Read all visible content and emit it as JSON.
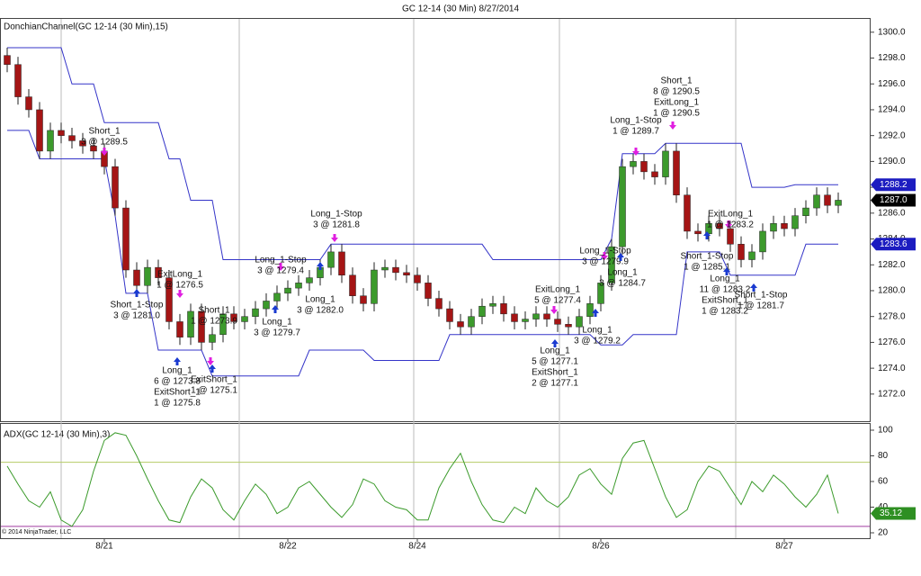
{
  "chart_data": [
    {
      "type": "candlestick",
      "title": "GC 12-14 (30 Min)  8/27/2014",
      "label": "DonchianChannel(GC 12-14 (30 Min),15)",
      "copyright": "© 2014 NinjaTrader, LLC",
      "ylim": [
        1269.9,
        1301.1
      ],
      "yticks": [
        {
          "value": 1272,
          "label": "1272.0"
        },
        {
          "value": 1274,
          "label": "1274.0"
        },
        {
          "value": 1276,
          "label": "1276.0"
        },
        {
          "value": 1278,
          "label": "1278.0"
        },
        {
          "value": 1280,
          "label": "1280.0"
        },
        {
          "value": 1282,
          "label": "1282.0"
        },
        {
          "value": 1284,
          "label": "1284.0"
        },
        {
          "value": 1286,
          "label": "1286.0"
        },
        {
          "value": 1288,
          "label": "1288.0"
        },
        {
          "value": 1290,
          "label": "1290.0"
        },
        {
          "value": 1292,
          "label": "1292.0"
        },
        {
          "value": 1294,
          "label": "1294.0"
        },
        {
          "value": 1296,
          "label": "1296.0"
        },
        {
          "value": 1298,
          "label": "1298.0"
        },
        {
          "value": 1300,
          "label": "1300.0"
        }
      ],
      "xticks": [
        {
          "value": 9,
          "label": "8/21"
        },
        {
          "value": 26,
          "label": "8/22"
        },
        {
          "value": 38,
          "label": "8/24"
        },
        {
          "value": 55,
          "label": "8/26"
        },
        {
          "value": 72,
          "label": "8/27"
        }
      ],
      "up_color": "#3c9a2c",
      "down_color": "#a51515",
      "open": [
        1298.2,
        1297.5,
        1295.0,
        1294.0,
        1290.8,
        1292.4,
        1292.0,
        1291.6,
        1291.2,
        1290.8,
        1289.6,
        1286.4,
        1281.6,
        1280.4,
        1281.8,
        1281.0,
        1277.6,
        1276.4,
        1278.4,
        1276.0,
        1276.6,
        1278.2,
        1277.6,
        1278.0,
        1278.6,
        1279.2,
        1279.8,
        1280.2,
        1280.6,
        1281.0,
        1281.8,
        1283.0,
        1281.2,
        1279.6,
        1279.0,
        1281.6,
        1281.8,
        1281.4,
        1281.2,
        1280.6,
        1279.4,
        1278.6,
        1277.6,
        1277.2,
        1278.0,
        1278.8,
        1279.0,
        1278.2,
        1277.6,
        1277.8,
        1278.2,
        1277.8,
        1277.4,
        1277.2,
        1278.0,
        1279.0,
        1280.6,
        1283.4,
        1289.6,
        1290.0,
        1289.2,
        1288.8,
        1290.8,
        1287.4,
        1284.6,
        1284.4,
        1285.2,
        1284.8,
        1283.6,
        1282.4,
        1283.0,
        1284.6,
        1285.2,
        1284.8,
        1285.8,
        1286.4,
        1287.4,
        1286.6
      ],
      "high": [
        1298.8,
        1298.1,
        1295.6,
        1294.6,
        1293.0,
        1293.0,
        1292.6,
        1292.2,
        1291.8,
        1291.4,
        1290.2,
        1287.0,
        1282.2,
        1282.4,
        1282.4,
        1281.6,
        1278.2,
        1279.0,
        1279.0,
        1277.2,
        1278.8,
        1278.8,
        1278.6,
        1279.2,
        1279.8,
        1280.4,
        1280.8,
        1281.2,
        1281.6,
        1282.4,
        1283.6,
        1283.6,
        1281.8,
        1280.2,
        1282.2,
        1282.4,
        1282.4,
        1282.0,
        1281.8,
        1281.2,
        1280.0,
        1279.2,
        1278.2,
        1278.6,
        1279.4,
        1279.6,
        1279.6,
        1278.8,
        1278.4,
        1278.8,
        1278.8,
        1278.4,
        1278.0,
        1278.6,
        1279.6,
        1281.2,
        1284.0,
        1290.2,
        1290.6,
        1290.6,
        1289.8,
        1291.4,
        1291.4,
        1288.0,
        1285.2,
        1285.8,
        1285.8,
        1285.4,
        1284.2,
        1283.6,
        1285.2,
        1285.8,
        1285.8,
        1286.4,
        1287.0,
        1288.0,
        1288.0,
        1287.6
      ],
      "low": [
        1296.9,
        1294.4,
        1293.4,
        1290.2,
        1290.2,
        1291.4,
        1291.0,
        1290.6,
        1290.2,
        1289.0,
        1285.8,
        1281.0,
        1279.8,
        1279.8,
        1280.4,
        1277.0,
        1275.8,
        1275.8,
        1275.4,
        1275.4,
        1276.0,
        1277.0,
        1277.0,
        1277.4,
        1278.0,
        1278.6,
        1279.2,
        1279.6,
        1280.0,
        1280.4,
        1281.2,
        1280.6,
        1279.0,
        1278.4,
        1278.4,
        1281.0,
        1280.8,
        1280.6,
        1280.0,
        1278.8,
        1278.0,
        1277.0,
        1276.6,
        1276.6,
        1277.4,
        1278.2,
        1277.6,
        1277.0,
        1277.0,
        1277.2,
        1277.2,
        1276.8,
        1276.6,
        1276.6,
        1277.4,
        1278.4,
        1280.0,
        1282.8,
        1289.0,
        1288.6,
        1288.2,
        1288.2,
        1286.8,
        1284.0,
        1283.8,
        1283.8,
        1284.2,
        1283.0,
        1281.8,
        1281.8,
        1282.4,
        1284.0,
        1284.2,
        1284.2,
        1285.2,
        1285.8,
        1286.0,
        1286.0
      ],
      "close": [
        1297.5,
        1295.0,
        1294.0,
        1290.8,
        1292.4,
        1292.0,
        1291.6,
        1291.2,
        1290.8,
        1289.6,
        1286.4,
        1281.6,
        1280.4,
        1281.8,
        1281.0,
        1277.6,
        1276.4,
        1278.4,
        1276.0,
        1276.6,
        1278.2,
        1277.6,
        1278.0,
        1278.6,
        1279.2,
        1279.8,
        1280.2,
        1280.6,
        1281.0,
        1281.8,
        1283.0,
        1281.2,
        1279.6,
        1279.0,
        1281.6,
        1281.8,
        1281.4,
        1281.2,
        1280.6,
        1279.4,
        1278.6,
        1277.6,
        1277.2,
        1278.0,
        1278.8,
        1279.0,
        1278.2,
        1277.6,
        1277.8,
        1278.2,
        1277.8,
        1277.4,
        1277.2,
        1278.0,
        1279.0,
        1280.6,
        1283.4,
        1289.6,
        1290.0,
        1289.2,
        1288.8,
        1290.8,
        1287.4,
        1284.6,
        1284.4,
        1285.2,
        1284.8,
        1283.6,
        1282.4,
        1283.0,
        1284.6,
        1285.2,
        1284.8,
        1285.8,
        1286.4,
        1287.4,
        1286.6,
        1287.0
      ],
      "channel": {
        "color": "#3434c8",
        "upper": [
          1298.8,
          1298.8,
          1298.8,
          1298.8,
          1298.8,
          1298.8,
          1296.0,
          1296.0,
          1296.0,
          1293.0,
          1293.0,
          1293.0,
          1293.0,
          1293.0,
          1293.0,
          1290.2,
          1290.2,
          1287.0,
          1287.0,
          1287.0,
          1282.4,
          1282.4,
          1282.4,
          1282.4,
          1282.4,
          1282.4,
          1282.4,
          1282.4,
          1282.4,
          1282.4,
          1283.6,
          1283.6,
          1283.6,
          1283.6,
          1283.6,
          1283.6,
          1283.6,
          1283.6,
          1283.6,
          1283.6,
          1283.6,
          1283.6,
          1283.6,
          1283.6,
          1283.6,
          1282.4,
          1282.4,
          1282.4,
          1282.4,
          1282.4,
          1282.4,
          1282.4,
          1282.4,
          1282.4,
          1282.4,
          1282.4,
          1284.0,
          1290.6,
          1290.6,
          1290.6,
          1290.6,
          1291.4,
          1291.4,
          1291.4,
          1291.4,
          1291.4,
          1291.4,
          1291.4,
          1291.4,
          1288.0,
          1288.0,
          1288.0,
          1288.0,
          1288.2,
          1288.2,
          1288.2,
          1288.2,
          1288.2
        ],
        "lower": [
          1292.4,
          1292.4,
          1292.4,
          1290.2,
          1290.2,
          1290.2,
          1290.2,
          1290.2,
          1290.2,
          1290.2,
          1285.8,
          1279.8,
          1279.8,
          1279.8,
          1275.4,
          1275.4,
          1275.4,
          1275.4,
          1275.4,
          1273.4,
          1273.4,
          1273.4,
          1273.4,
          1273.4,
          1273.4,
          1273.4,
          1273.4,
          1273.4,
          1275.4,
          1275.4,
          1275.4,
          1275.4,
          1275.4,
          1275.4,
          1274.6,
          1274.6,
          1274.6,
          1274.6,
          1274.6,
          1274.6,
          1274.6,
          1276.6,
          1276.6,
          1276.6,
          1276.6,
          1276.6,
          1276.6,
          1276.6,
          1276.6,
          1276.6,
          1276.6,
          1276.6,
          1276.6,
          1276.6,
          1276.6,
          1275.8,
          1275.8,
          1275.8,
          1276.6,
          1276.6,
          1276.6,
          1276.6,
          1276.6,
          1283.0,
          1283.0,
          1283.0,
          1283.0,
          1281.2,
          1281.2,
          1281.2,
          1281.2,
          1281.2,
          1281.2,
          1281.2,
          1283.6,
          1283.6,
          1283.6,
          1283.6
        ]
      },
      "price_markers": [
        {
          "value": 1288.2,
          "label": "1288.2",
          "color": "#1c1cc0"
        },
        {
          "value": 1287.0,
          "label": "1287.0",
          "color": "#000000"
        },
        {
          "value": 1283.6,
          "label": "1283.6",
          "color": "#1c1cc0"
        }
      ],
      "arrow_colors": {
        "down": "#e01ee0",
        "up": "#1a3ad0"
      },
      "annotations": [
        {
          "arrow": "down",
          "lines": [
            "Short_1",
            "3 @ 1289.5"
          ]
        },
        {
          "arrow": "up",
          "lines": [
            "Short_1-Stop",
            "3 @ 1281.0"
          ]
        },
        {
          "arrow": "down",
          "lines": [
            "ExitLong_1",
            "1 @ 1276.5"
          ]
        },
        {
          "arrow": "up",
          "lines": [
            "Long_1",
            "6 @ 1273.8",
            "ExitShort_1",
            "1 @ 1275.8"
          ]
        },
        {
          "arrow": "up",
          "lines": [
            "ExitShort_1",
            "1 @ 1275.1"
          ]
        },
        {
          "arrow": "down",
          "lines": [
            "Short_1",
            "1 @ 1273.9"
          ]
        },
        {
          "arrow": "down",
          "lines": [
            "Long_1-Stop",
            "3 @ 1279.4"
          ]
        },
        {
          "arrow": "up",
          "lines": [
            "Long_1",
            "3 @ 1279.7"
          ]
        },
        {
          "arrow": "down",
          "lines": [
            "Long_1-Stop",
            "3 @ 1281.8"
          ]
        },
        {
          "arrow": "up",
          "lines": [
            "Long_1",
            "3 @ 1282.0"
          ]
        },
        {
          "arrow": "down",
          "lines": [
            "ExitLong_1",
            "5 @ 1277.4"
          ]
        },
        {
          "arrow": "up",
          "lines": [
            "Long_1",
            "5 @ 1277.1",
            "ExitShort_1",
            "2 @ 1277.1"
          ]
        },
        {
          "arrow": "up",
          "lines": [
            "Long_1",
            "3 @ 1279.2"
          ]
        },
        {
          "arrow": "down",
          "lines": [
            "Long_1-Stop",
            "3 @ 1279.9"
          ]
        },
        {
          "arrow": "up",
          "lines": [
            "Long_1",
            "3 @ 1284.7"
          ]
        },
        {
          "arrow": "down",
          "lines": [
            "Long_1-Stop",
            "1 @ 1289.7"
          ]
        },
        {
          "arrow": "down",
          "lines": [
            "Short_1",
            "8 @ 1290.5",
            "ExitLong_1",
            "1 @ 1290.5"
          ]
        },
        {
          "arrow": "up",
          "lines": [
            "Short_1-Stop",
            "1 @ 1285.1"
          ]
        },
        {
          "arrow": "down",
          "lines": [
            "ExitLong_1",
            "1 @ 1283.2"
          ]
        },
        {
          "arrow": "up",
          "lines": [
            "Long_1",
            "11 @ 1283.2",
            "ExitShort_1",
            "1 @ 1283.2"
          ]
        },
        {
          "arrow": "up",
          "lines": [
            "Short_1-Stop",
            "1 @ 1281.7"
          ]
        }
      ]
    },
    {
      "type": "line",
      "label": "ADX(GC 12-14 (30 Min),3)",
      "ylim": [
        15.8,
        105.6
      ],
      "yticks": [
        20,
        40,
        60,
        80,
        100
      ],
      "color": "#3a9a2a",
      "levels": [
        {
          "value": 75,
          "color": "#b4cc64"
        },
        {
          "value": 25,
          "color": "#a03ca0"
        }
      ],
      "values": [
        72,
        58,
        45,
        40,
        52,
        30,
        25,
        38,
        68,
        92,
        98,
        96,
        80,
        62,
        45,
        30,
        28,
        48,
        62,
        55,
        38,
        30,
        45,
        58,
        50,
        35,
        40,
        55,
        60,
        50,
        40,
        32,
        42,
        62,
        58,
        45,
        40,
        38,
        30,
        30,
        55,
        70,
        82,
        60,
        42,
        30,
        28,
        40,
        35,
        55,
        45,
        40,
        48,
        65,
        70,
        58,
        50,
        78,
        90,
        92,
        70,
        48,
        32,
        38,
        60,
        72,
        68,
        55,
        42,
        60,
        52,
        65,
        58,
        48,
        40,
        50,
        65,
        35.12
      ],
      "marker_color": "#2e8f22"
    }
  ]
}
